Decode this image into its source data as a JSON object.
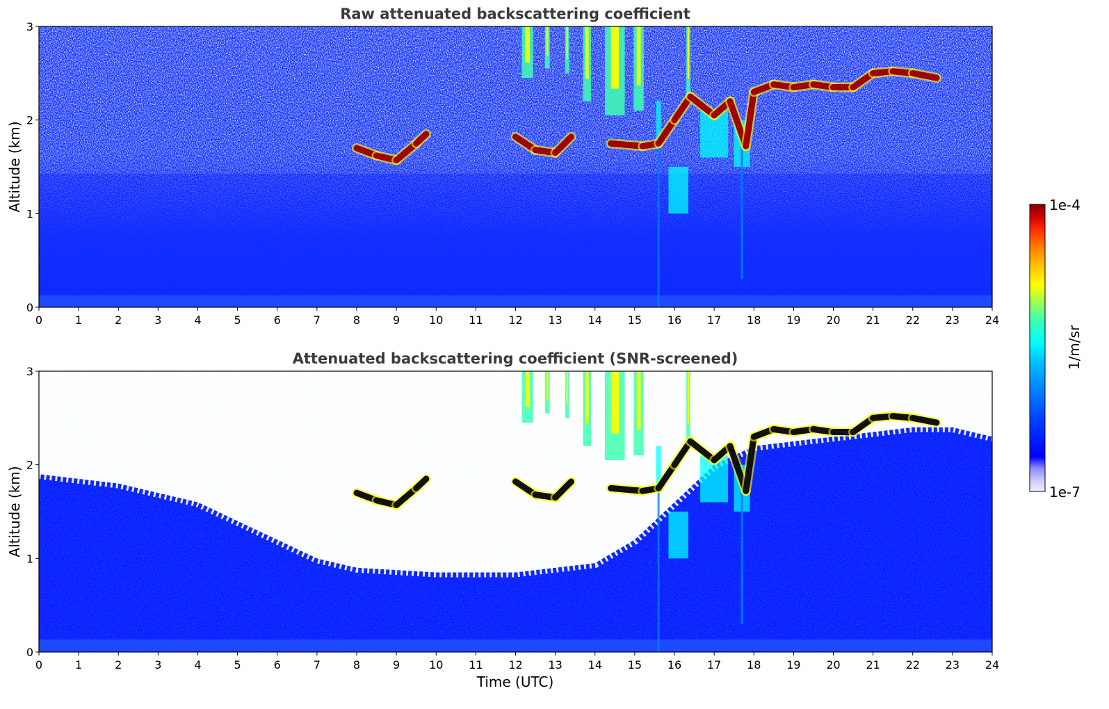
{
  "chart_data": [
    {
      "type": "heatmap",
      "title": "Raw attenuated backscattering coefficient",
      "xlabel": "",
      "ylabel": "Altitude (km)",
      "xlim": [
        0,
        24
      ],
      "ylim": [
        0,
        3
      ],
      "x_ticks": [
        "0",
        "1",
        "2",
        "3",
        "4",
        "5",
        "6",
        "7",
        "8",
        "9",
        "10",
        "11",
        "12",
        "13",
        "14",
        "15",
        "16",
        "17",
        "18",
        "19",
        "20",
        "21",
        "22",
        "23",
        "24"
      ],
      "y_ticks": [
        "0",
        "1",
        "2",
        "3"
      ],
      "colormap": "jet",
      "color_scale": "log",
      "noise": "high (unscreened)",
      "cloud_layer": [
        {
          "t": 8.0,
          "alt": 1.7
        },
        {
          "t": 8.5,
          "alt": 1.62
        },
        {
          "t": 9.0,
          "alt": 1.57
        },
        {
          "t": 9.5,
          "alt": 1.75
        },
        {
          "t": 9.75,
          "alt": 1.85
        },
        {
          "t": 12.0,
          "alt": 1.82
        },
        {
          "t": 12.5,
          "alt": 1.68
        },
        {
          "t": 13.0,
          "alt": 1.65
        },
        {
          "t": 13.4,
          "alt": 1.82
        },
        {
          "t": 14.4,
          "alt": 1.75
        },
        {
          "t": 15.2,
          "alt": 1.72
        },
        {
          "t": 15.6,
          "alt": 1.75
        },
        {
          "t": 16.0,
          "alt": 2.0
        },
        {
          "t": 16.4,
          "alt": 2.25
        },
        {
          "t": 17.0,
          "alt": 2.05
        },
        {
          "t": 17.4,
          "alt": 2.2
        },
        {
          "t": 17.8,
          "alt": 1.72
        },
        {
          "t": 18.0,
          "alt": 2.3
        },
        {
          "t": 18.5,
          "alt": 2.38
        },
        {
          "t": 19.0,
          "alt": 2.35
        },
        {
          "t": 19.5,
          "alt": 2.38
        },
        {
          "t": 20.0,
          "alt": 2.35
        },
        {
          "t": 20.5,
          "alt": 2.35
        },
        {
          "t": 21.0,
          "alt": 2.5
        },
        {
          "t": 21.5,
          "alt": 2.52
        },
        {
          "t": 22.0,
          "alt": 2.5
        },
        {
          "t": 22.6,
          "alt": 2.45
        }
      ]
    },
    {
      "type": "heatmap",
      "title": "Attenuated backscattering coefficient (SNR-screened)",
      "xlabel": "Time (UTC)",
      "ylabel": "Altitude (km)",
      "xlim": [
        0,
        24
      ],
      "ylim": [
        0,
        3
      ],
      "x_ticks": [
        "0",
        "1",
        "2",
        "3",
        "4",
        "5",
        "6",
        "7",
        "8",
        "9",
        "10",
        "11",
        "12",
        "13",
        "14",
        "15",
        "16",
        "17",
        "18",
        "19",
        "20",
        "21",
        "22",
        "23",
        "24"
      ],
      "y_ticks": [
        "0",
        "1",
        "2",
        "3"
      ],
      "colormap": "jet",
      "color_scale": "log",
      "noise": "screened (white above boundary layer)",
      "boundary_layer_top": [
        {
          "t": 0,
          "alt": 1.9
        },
        {
          "t": 2,
          "alt": 1.8
        },
        {
          "t": 4,
          "alt": 1.6
        },
        {
          "t": 5,
          "alt": 1.4
        },
        {
          "t": 6,
          "alt": 1.2
        },
        {
          "t": 7,
          "alt": 1.0
        },
        {
          "t": 8,
          "alt": 0.9
        },
        {
          "t": 10,
          "alt": 0.85
        },
        {
          "t": 12,
          "alt": 0.85
        },
        {
          "t": 14,
          "alt": 0.95
        },
        {
          "t": 15,
          "alt": 1.2
        },
        {
          "t": 16,
          "alt": 1.6
        },
        {
          "t": 17,
          "alt": 2.0
        },
        {
          "t": 18,
          "alt": 2.2
        },
        {
          "t": 20,
          "alt": 2.3
        },
        {
          "t": 22,
          "alt": 2.4
        },
        {
          "t": 23,
          "alt": 2.4
        },
        {
          "t": 24,
          "alt": 2.3
        }
      ]
    }
  ],
  "colorbar": {
    "max_label": "1e-4",
    "min_label": "1e-7",
    "label": "1/m/sr",
    "colors": [
      "#f0f0ff",
      "#c8c8ff",
      "#8f8fff",
      "#0000ff",
      "#0040ff",
      "#0080ff",
      "#00c0ff",
      "#00ffff",
      "#40ffb0",
      "#a0ff50",
      "#ffff00",
      "#ffc000",
      "#ff8000",
      "#ff3000",
      "#cc0000",
      "#800000"
    ]
  }
}
